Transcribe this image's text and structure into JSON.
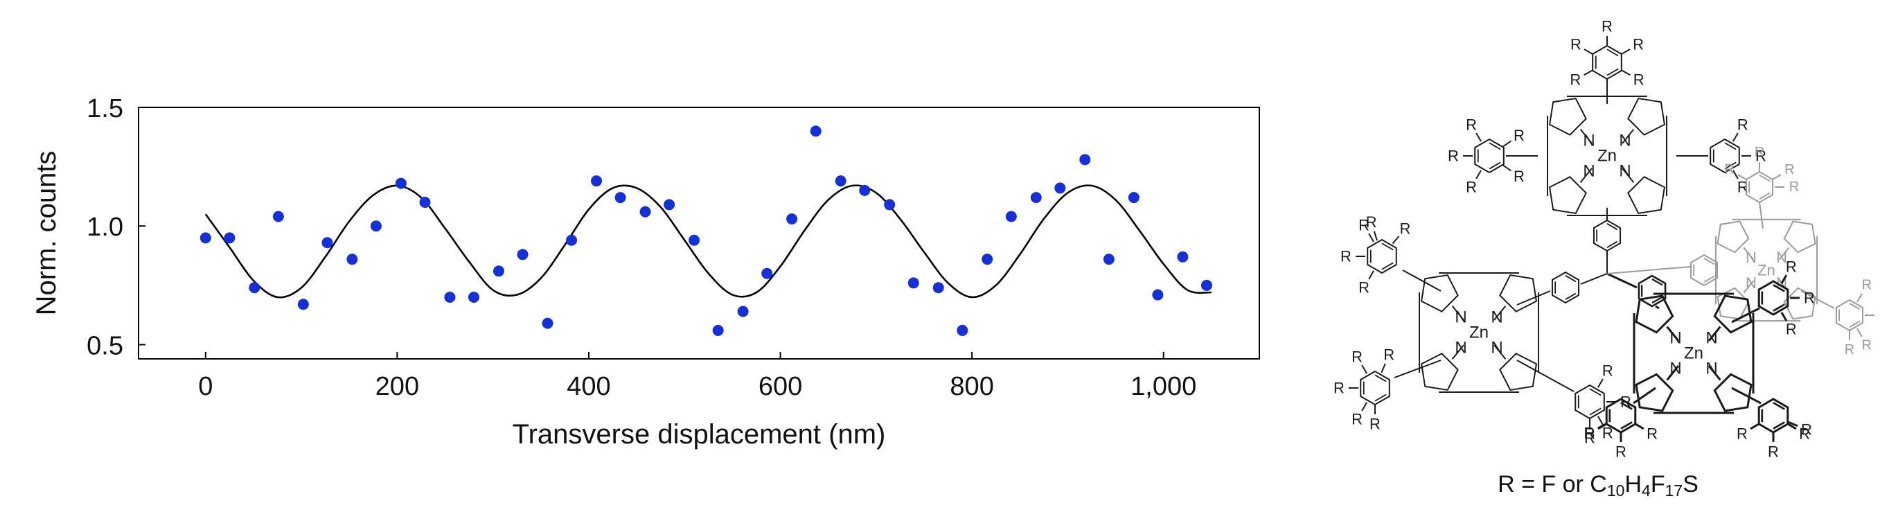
{
  "chart_data": {
    "type": "scatter",
    "xlabel": "Transverse displacement (nm)",
    "ylabel": "Norm. counts",
    "xlim": [
      -70,
      1100
    ],
    "ylim": [
      0.44,
      1.5
    ],
    "xticks": [
      0,
      200,
      400,
      600,
      800,
      1000
    ],
    "xtick_labels": [
      "0",
      "200",
      "400",
      "600",
      "800",
      "1,000"
    ],
    "yticks": [
      0.5,
      1.0,
      1.5
    ],
    "ytick_labels": [
      "0.5",
      "1.0",
      "1.5"
    ],
    "grid": false,
    "marker_color": "#1530d8",
    "line_color": "#000000",
    "series": [
      {
        "kind": "points",
        "x": [
          0,
          25,
          51,
          76,
          102,
          127,
          153,
          178,
          204,
          229,
          255,
          280,
          306,
          331,
          357,
          382,
          408,
          433,
          459,
          484,
          510,
          535,
          561,
          586,
          612,
          637,
          663,
          688,
          714,
          739,
          765,
          790,
          816,
          841,
          867,
          892,
          918,
          943,
          969,
          994,
          1020,
          1045
        ],
        "y": [
          0.95,
          0.95,
          0.74,
          1.04,
          0.67,
          0.93,
          0.86,
          1.0,
          1.18,
          1.1,
          0.7,
          0.7,
          0.81,
          0.88,
          0.59,
          0.94,
          1.19,
          1.12,
          1.06,
          1.09,
          0.94,
          0.56,
          0.64,
          0.8,
          1.03,
          1.4,
          1.19,
          1.15,
          1.09,
          0.76,
          0.74,
          0.56,
          0.86,
          1.04,
          1.12,
          1.16,
          1.28,
          0.86,
          1.12,
          0.71,
          0.87,
          0.75
        ]
      },
      {
        "kind": "fit",
        "x": [
          0,
          25,
          50,
          75,
          100,
          125,
          150,
          175,
          200,
          225,
          250,
          275,
          300,
          325,
          350,
          375,
          400,
          425,
          450,
          475,
          500,
          525,
          550,
          575,
          600,
          625,
          650,
          675,
          700,
          725,
          750,
          775,
          800,
          825,
          850,
          875,
          900,
          925,
          950,
          975,
          1000,
          1025,
          1050
        ],
        "y": [
          1.05,
          0.91,
          0.77,
          0.7,
          0.74,
          0.87,
          1.02,
          1.13,
          1.17,
          1.12,
          0.99,
          0.85,
          0.73,
          0.71,
          0.78,
          0.92,
          1.07,
          1.16,
          1.16,
          1.08,
          0.94,
          0.8,
          0.71,
          0.72,
          0.83,
          0.98,
          1.11,
          1.17,
          1.14,
          1.03,
          0.89,
          0.76,
          0.7,
          0.75,
          0.88,
          1.03,
          1.14,
          1.17,
          1.11,
          0.98,
          0.84,
          0.73,
          0.72
        ]
      }
    ]
  },
  "structure": {
    "caption_prefix": "R = F or C",
    "caption_sub1": "10",
    "caption_mid1": "H",
    "caption_sub2": "4",
    "caption_mid2": "F",
    "caption_sub3": "17",
    "caption_suffix": "S",
    "atom_zn": "Zn",
    "atom_n": "N",
    "atom_r": "R"
  }
}
